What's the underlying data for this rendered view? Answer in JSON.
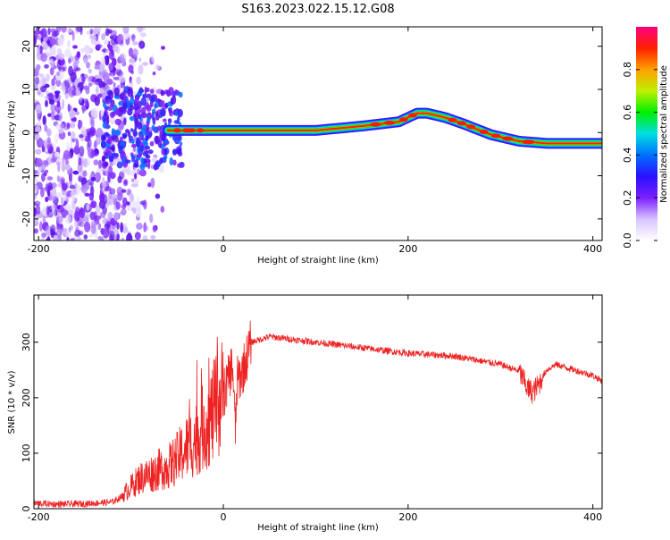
{
  "title": "S163.2023.022.15.12.G08",
  "chart_data": [
    {
      "type": "heatmap",
      "xlabel": "Height of straight line (km)",
      "ylabel": "Frequency (Hz)",
      "xlim": [
        -205,
        410
      ],
      "ylim": [
        -25,
        24.5
      ],
      "xticks": [
        -200,
        0,
        200,
        400
      ],
      "yticks": [
        -20,
        -10,
        0,
        10,
        20
      ],
      "ridge": {
        "x": [
          -60,
          -45,
          -30,
          0,
          100,
          150,
          190,
          210,
          220,
          240,
          260,
          290,
          320,
          350,
          410
        ],
        "y": [
          0.5,
          0.5,
          0.5,
          0.5,
          0.5,
          1.5,
          2.5,
          4.5,
          4.5,
          3.5,
          2.0,
          -0.5,
          -2.0,
          -2.5,
          -2.5
        ]
      },
      "colorbar": {
        "label": "Normalized spectral amplitude",
        "ticks": [
          0.0,
          0.2,
          0.4,
          0.6,
          0.8
        ],
        "range": [
          0,
          1
        ],
        "colormap": [
          "#ffffff",
          "#d8c4ff",
          "#7a1fff",
          "#2a10ff",
          "#0070ff",
          "#00e0e0",
          "#00f000",
          "#c0f000",
          "#ffa000",
          "#ff2000",
          "#ff0080"
        ]
      }
    },
    {
      "type": "line",
      "xlabel": "Height of straight line (km)",
      "ylabel": "SNR (10 * v/v)",
      "xlim": [
        -205,
        410
      ],
      "ylim": [
        0,
        385
      ],
      "xticks": [
        -200,
        0,
        200,
        400
      ],
      "yticks": [
        0,
        100,
        200,
        300
      ],
      "color": "#ee2222",
      "series": [
        {
          "x": [
            -205,
            -180,
            -150,
            -120,
            -110,
            -100,
            -90,
            -80,
            -70,
            -60,
            -50,
            -40,
            -30,
            -20,
            -15,
            -10,
            -5,
            0,
            5,
            8,
            10,
            13,
            15,
            20,
            25,
            30,
            40,
            50,
            75,
            100,
            150,
            200,
            250,
            300,
            320,
            330,
            335,
            340,
            350,
            360,
            380,
            400,
            410
          ],
          "y": [
            10,
            8,
            9,
            12,
            22,
            40,
            55,
            62,
            70,
            75,
            90,
            110,
            125,
            150,
            160,
            175,
            190,
            205,
            230,
            250,
            260,
            140,
            230,
            245,
            270,
            300,
            305,
            310,
            305,
            300,
            290,
            280,
            275,
            260,
            248,
            215,
            210,
            220,
            250,
            260,
            250,
            240,
            230
          ]
        }
      ]
    }
  ]
}
